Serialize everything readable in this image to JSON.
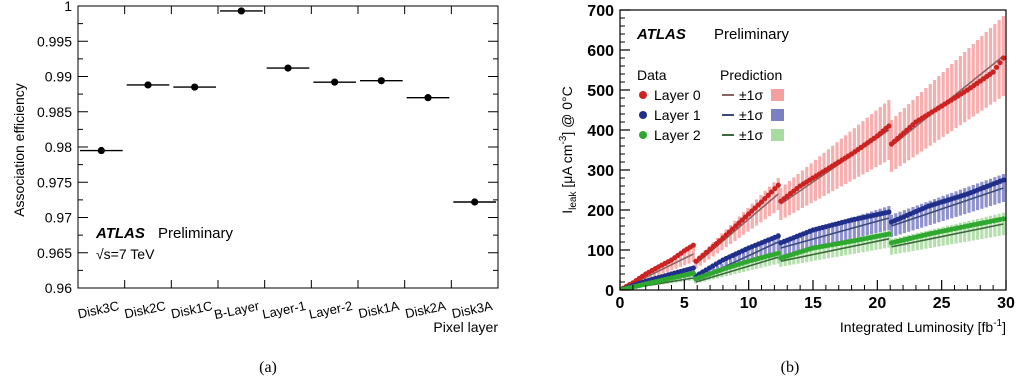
{
  "chart_data": [
    {
      "type": "scatter",
      "panel_label": "(a)",
      "ylabel": "Association efficiency",
      "xlabel": "Pixel layer",
      "categories": [
        "Disk3C",
        "Disk2C",
        "Disk1C",
        "B-Layer",
        "Layer-1",
        "Layer-2",
        "Disk1A",
        "Disk2A",
        "Disk3A"
      ],
      "values": [
        0.9795,
        0.9888,
        0.9885,
        0.9993,
        0.9912,
        0.9892,
        0.9894,
        0.987,
        0.9722
      ],
      "ylim": [
        0.96,
        1.0
      ],
      "yticks": [
        "0.96",
        "0.965",
        "0.97",
        "0.975",
        "0.98",
        "0.985",
        "0.99",
        "0.995",
        "1"
      ],
      "annotation": {
        "experiment": "ATLAS",
        "status": "Preliminary",
        "energy": "√s=7 TeV"
      }
    },
    {
      "type": "line",
      "panel_label": "(b)",
      "ylabel": "I_leak [μA cm⁻³] @ 0°C",
      "ylabel_main": "I",
      "ylabel_sub": "leak",
      "ylabel_rest": " [μA cm",
      "ylabel_sup": "-3",
      "ylabel_end": "] @ 0°C",
      "xlabel": "Integrated Luminosity [fb⁻¹]",
      "xlabel_main": "Integrated Luminosity [fb",
      "xlabel_sup": "-1",
      "xlabel_end": "]",
      "xlim": [
        0,
        30
      ],
      "ylim": [
        0,
        700
      ],
      "xticks": [
        "0",
        "5",
        "10",
        "15",
        "20",
        "25",
        "30"
      ],
      "yticks": [
        "0",
        "100",
        "200",
        "300",
        "400",
        "500",
        "600",
        "700"
      ],
      "annotation": {
        "experiment": "ATLAS",
        "status": "Preliminary"
      },
      "legend": {
        "data_header": "Data",
        "prediction_header": "Prediction",
        "band_label": "±1σ",
        "placement": "top-left"
      },
      "series": [
        {
          "name": "Layer 0",
          "color": "#cc2222",
          "band_color": "#f4a0a0",
          "line_color": "#8c6464",
          "segments": [
            {
              "x": [
                0,
                1,
                2,
                3,
                4,
                5,
                5.7
              ],
              "y": [
                0,
                18,
                40,
                58,
                75,
                98,
                112
              ]
            },
            {
              "x": [
                5.9,
                7,
                8,
                9,
                10,
                11,
                12.3
              ],
              "y": [
                72,
                102,
                130,
                160,
                190,
                220,
                262
              ]
            },
            {
              "x": [
                12.5,
                14,
                16,
                18,
                20,
                20.9
              ],
              "y": [
                222,
                260,
                300,
                340,
                385,
                410
              ]
            },
            {
              "x": [
                21.1,
                23,
                25,
                27,
                29,
                29.8
              ],
              "y": [
                365,
                420,
                460,
                500,
                545,
                580
              ]
            }
          ],
          "prediction": [
            {
              "x": [
                0,
                5.7
              ],
              "y": [
                0,
                90
              ],
              "err": [
                0,
                20
              ]
            },
            {
              "x": [
                5.9,
                12.3
              ],
              "y": [
                65,
                240
              ],
              "err": [
                12,
                40
              ]
            },
            {
              "x": [
                12.5,
                20.9
              ],
              "y": [
                215,
                400
              ],
              "err": [
                40,
                75
              ]
            },
            {
              "x": [
                21.1,
                29.8
              ],
              "y": [
                360,
                585
              ],
              "err": [
                65,
                100
              ]
            }
          ]
        },
        {
          "name": "Layer 1",
          "color": "#1f2f8a",
          "band_color": "#7b7fc4",
          "line_color": "#3a4a7a",
          "segments": [
            {
              "x": [
                0,
                2,
                4,
                5.7
              ],
              "y": [
                0,
                22,
                40,
                55
              ]
            },
            {
              "x": [
                5.9,
                8,
                10,
                12.3
              ],
              "y": [
                35,
                75,
                105,
                135
              ]
            },
            {
              "x": [
                12.5,
                15,
                18,
                20.9
              ],
              "y": [
                118,
                150,
                175,
                195
              ]
            },
            {
              "x": [
                21.1,
                24,
                27,
                29.8
              ],
              "y": [
                170,
                210,
                240,
                275
              ]
            }
          ],
          "prediction": [
            {
              "x": [
                0,
                5.7
              ],
              "y": [
                0,
                40
              ],
              "err": [
                0,
                8
              ]
            },
            {
              "x": [
                5.9,
                12.3
              ],
              "y": [
                25,
                120
              ],
              "err": [
                6,
                22
              ]
            },
            {
              "x": [
                12.5,
                20.9
              ],
              "y": [
                105,
                180
              ],
              "err": [
                20,
                30
              ]
            },
            {
              "x": [
                21.1,
                29.8
              ],
              "y": [
                160,
                255
              ],
              "err": [
                28,
                35
              ]
            }
          ]
        },
        {
          "name": "Layer 2",
          "color": "#2ea82e",
          "band_color": "#a8dba0",
          "line_color": "#3a6a3a",
          "segments": [
            {
              "x": [
                0,
                2,
                4,
                5.7
              ],
              "y": [
                0,
                15,
                30,
                42
              ]
            },
            {
              "x": [
                5.9,
                8,
                10,
                12.3
              ],
              "y": [
                28,
                52,
                72,
                92
              ]
            },
            {
              "x": [
                12.5,
                15,
                18,
                20.9
              ],
              "y": [
                80,
                105,
                122,
                140
              ]
            },
            {
              "x": [
                21.1,
                24,
                27,
                29.8
              ],
              "y": [
                118,
                140,
                160,
                178
              ]
            }
          ],
          "prediction": [
            {
              "x": [
                0,
                5.7
              ],
              "y": [
                0,
                30
              ],
              "err": [
                0,
                6
              ]
            },
            {
              "x": [
                5.9,
                12.3
              ],
              "y": [
                20,
                82
              ],
              "err": [
                4,
                16
              ]
            },
            {
              "x": [
                12.5,
                20.9
              ],
              "y": [
                72,
                128
              ],
              "err": [
                14,
                22
              ]
            },
            {
              "x": [
                21.1,
                29.8
              ],
              "y": [
                108,
                165
              ],
              "err": [
                20,
                28
              ]
            }
          ]
        }
      ]
    }
  ]
}
